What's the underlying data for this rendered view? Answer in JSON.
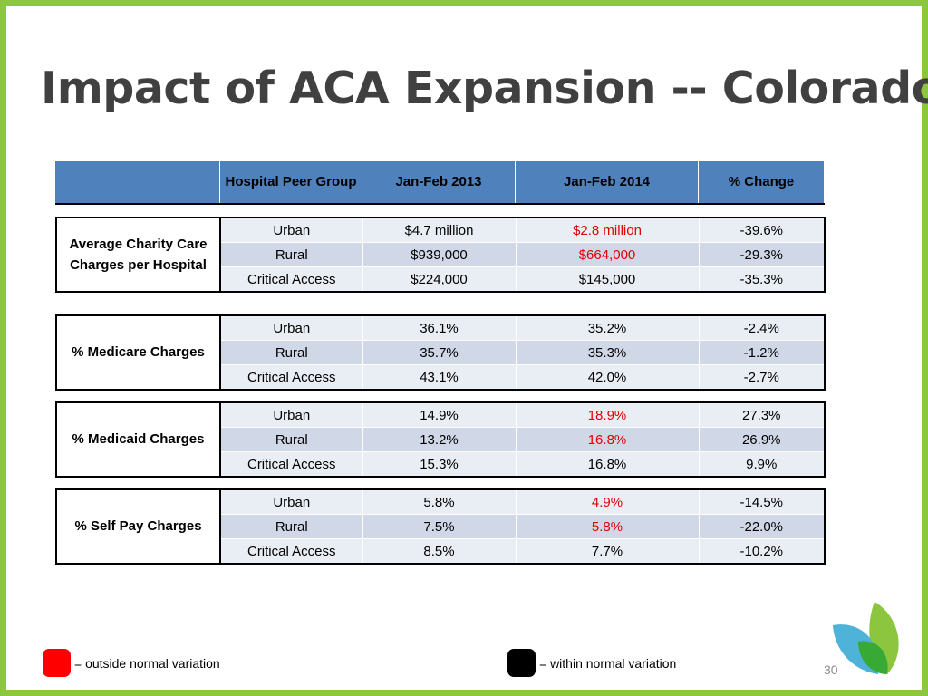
{
  "title": "Impact of ACA Expansion -- Colorado",
  "header": {
    "blank": "",
    "peer_group": "Hospital Peer Group",
    "col1": "Jan-Feb 2013",
    "col2": "Jan-Feb 2014",
    "col3": "% Change"
  },
  "sections": [
    {
      "label": "Average Charity Care Charges per Hospital",
      "rows": [
        {
          "group": "Urban",
          "v2013": "$4.7 million",
          "v2014": "$2.8 million",
          "change": "-39.6%",
          "flag_2014": true
        },
        {
          "group": "Rural",
          "v2013": "$939,000",
          "v2014": "$664,000",
          "change": "-29.3%",
          "flag_2014": true
        },
        {
          "group": "Critical Access",
          "v2013": "$224,000",
          "v2014": "$145,000",
          "change": "-35.3%",
          "flag_2014": false
        }
      ]
    },
    {
      "label": "% Medicare Charges",
      "rows": [
        {
          "group": "Urban",
          "v2013": "36.1%",
          "v2014": "35.2%",
          "change": "-2.4%",
          "flag_2014": false
        },
        {
          "group": "Rural",
          "v2013": "35.7%",
          "v2014": "35.3%",
          "change": "-1.2%",
          "flag_2014": false
        },
        {
          "group": "Critical Access",
          "v2013": "43.1%",
          "v2014": "42.0%",
          "change": "-2.7%",
          "flag_2014": false
        }
      ]
    },
    {
      "label": "% Medicaid Charges",
      "rows": [
        {
          "group": "Urban",
          "v2013": "14.9%",
          "v2014": "18.9%",
          "change": "27.3%",
          "flag_2014": true
        },
        {
          "group": "Rural",
          "v2013": "13.2%",
          "v2014": "16.8%",
          "change": "26.9%",
          "flag_2014": true
        },
        {
          "group": "Critical Access",
          "v2013": "15.3%",
          "v2014": "16.8%",
          "change": "9.9%",
          "flag_2014": false
        }
      ]
    },
    {
      "label": "% Self Pay Charges",
      "rows": [
        {
          "group": "Urban",
          "v2013": "5.8%",
          "v2014": "4.9%",
          "change": "-14.5%",
          "flag_2014": true
        },
        {
          "group": "Rural",
          "v2013": "7.5%",
          "v2014": "5.8%",
          "change": "-22.0%",
          "flag_2014": true
        },
        {
          "group": "Critical Access",
          "v2013": "8.5%",
          "v2014": "7.7%",
          "change": "-10.2%",
          "flag_2014": false
        }
      ]
    }
  ],
  "legend": {
    "outside_label": "= outside normal variation",
    "outside_color": "#ff0000",
    "within_label": "= within normal variation",
    "within_color": "#000000"
  },
  "page_number": "30",
  "colors": {
    "border": "#8cc63f",
    "header_fill": "#4f81bd",
    "row_light": "#e9edf4",
    "row_dark": "#d0d8e8",
    "highlight_text": "#e00000",
    "title_text": "#404040"
  },
  "logo_icon": "leaf-logo-icon"
}
